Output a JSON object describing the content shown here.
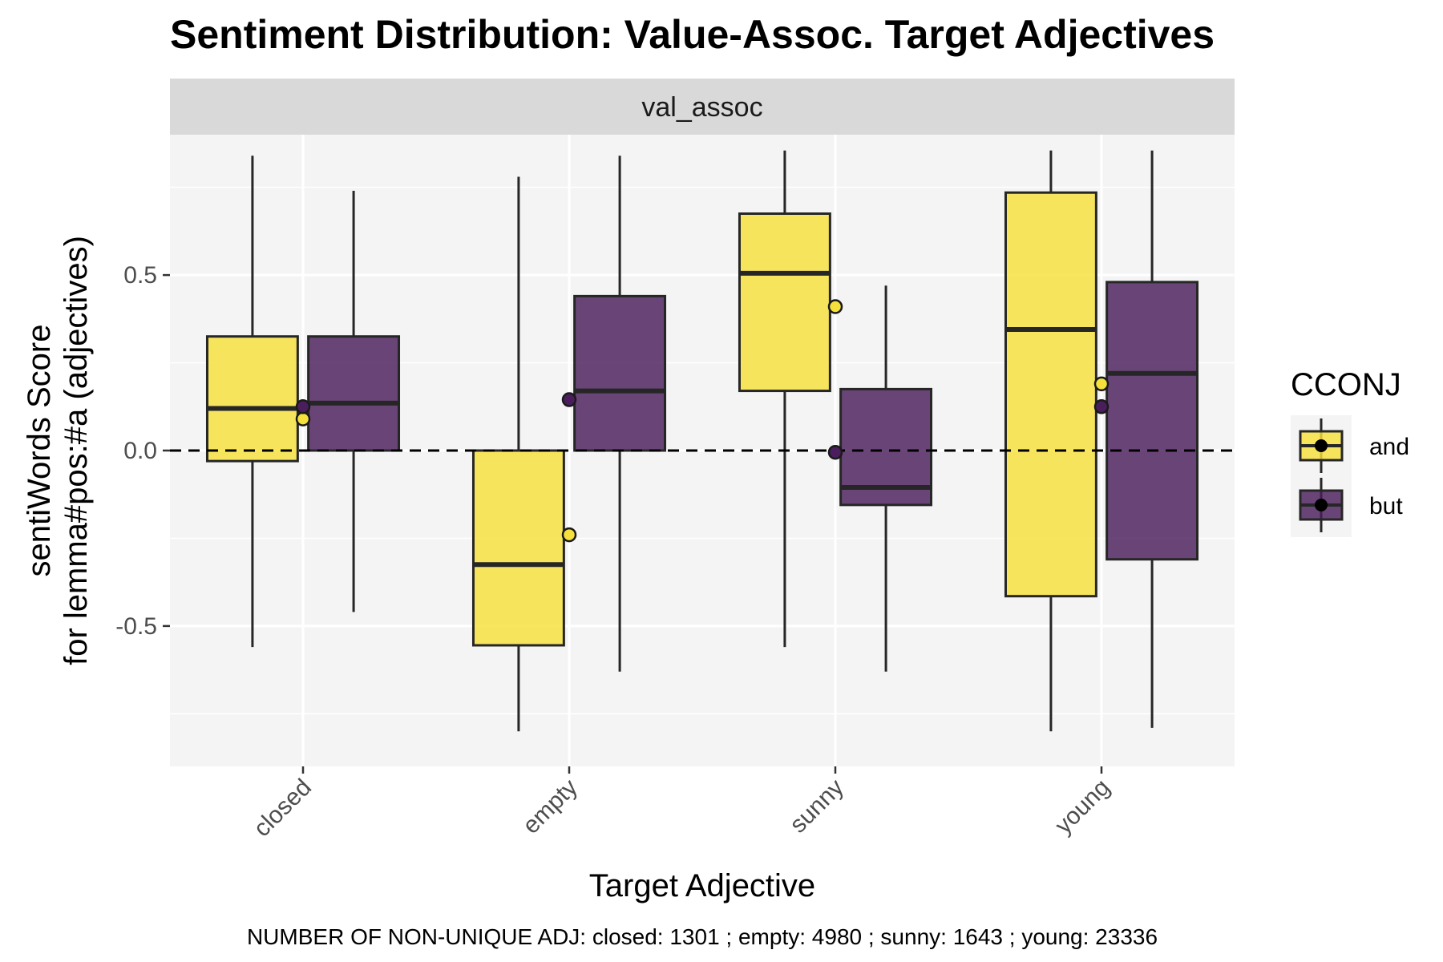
{
  "chart_data": {
    "type": "boxplot",
    "title": "Sentiment Distribution: Value-Assoc. Target Adjectives",
    "facet_label": "val_assoc",
    "xlabel": "Target Adjective",
    "ylabel": [
      "sentiWords Score",
      "for lemma#pos:#a (adjectives)"
    ],
    "caption": "NUMBER OF NON-UNIQUE ADJ: closed: 1301 ; empty: 4980 ; sunny: 1643 ; young: 23336",
    "categories": [
      "closed",
      "empty",
      "sunny",
      "young"
    ],
    "ylim": [
      -0.9,
      0.9
    ],
    "y_ticks": [
      -0.5,
      0.0,
      0.5
    ],
    "y_tick_labels": [
      "-0.5",
      "0.0",
      "0.5"
    ],
    "reference_line": {
      "y": 0,
      "style": "dashed"
    },
    "grid": true,
    "legend": {
      "title": "CCONJ",
      "position": "right"
    },
    "series": [
      {
        "name": "and",
        "color": "#F6E13C",
        "boxes": [
          {
            "min": -0.56,
            "q1": -0.03,
            "median": 0.12,
            "q3": 0.325,
            "max": 0.84,
            "mean": 0.09
          },
          {
            "min": -0.8,
            "q1": -0.555,
            "median": -0.325,
            "q3": 0.0,
            "max": 0.78,
            "mean": -0.24
          },
          {
            "min": -0.56,
            "q1": 0.17,
            "median": 0.505,
            "q3": 0.675,
            "max": 0.855,
            "mean": 0.41
          },
          {
            "min": -0.8,
            "q1": -0.415,
            "median": 0.345,
            "q3": 0.735,
            "max": 0.855,
            "mean": 0.19
          }
        ]
      },
      {
        "name": "but",
        "color": "#4A1E5C",
        "boxes": [
          {
            "min": -0.46,
            "q1": 0.0,
            "median": 0.135,
            "q3": 0.325,
            "max": 0.74,
            "mean": 0.125
          },
          {
            "min": -0.63,
            "q1": 0.0,
            "median": 0.17,
            "q3": 0.44,
            "max": 0.84,
            "mean": 0.145
          },
          {
            "min": -0.63,
            "q1": -0.155,
            "median": -0.105,
            "q3": 0.175,
            "max": 0.47,
            "mean": -0.005
          },
          {
            "min": -0.79,
            "q1": -0.31,
            "median": 0.22,
            "q3": 0.48,
            "max": 0.855,
            "mean": 0.125
          }
        ]
      }
    ]
  }
}
